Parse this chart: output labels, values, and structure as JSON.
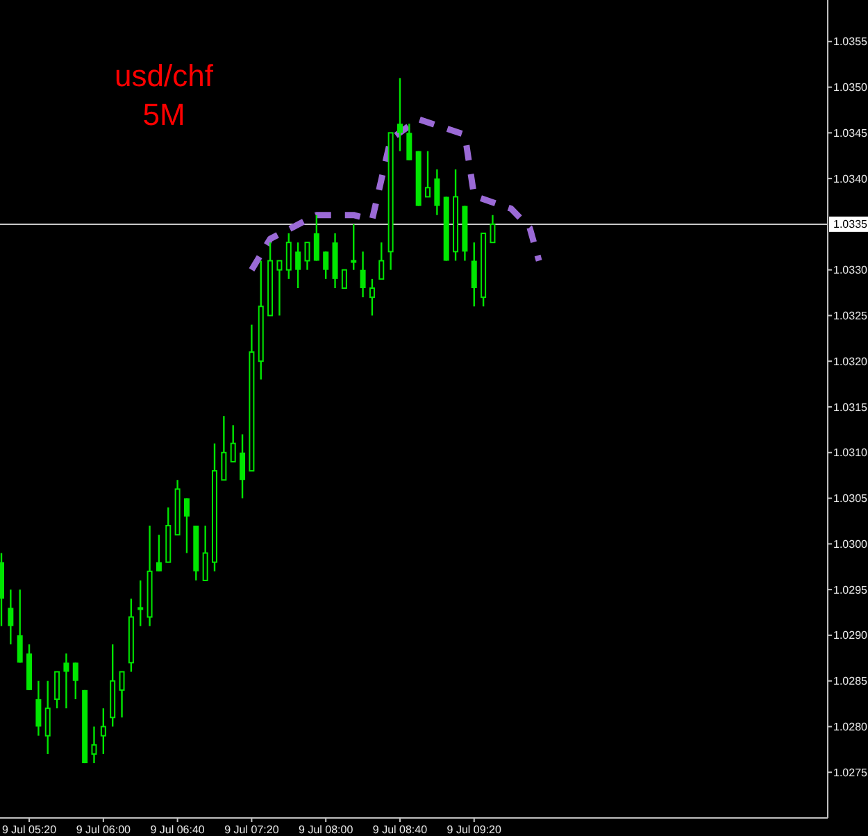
{
  "chart_data": {
    "type": "candlestick",
    "title": "usd/chf",
    "subtitle": "5M",
    "categories": [
      null,
      null,
      null,
      "9 Jul 05:20",
      null,
      null,
      null,
      null,
      null,
      null,
      null,
      "9 Jul 06:00",
      null,
      null,
      null,
      null,
      null,
      null,
      null,
      "9 Jul 06:40",
      null,
      null,
      null,
      null,
      null,
      null,
      null,
      "9 Jul 07:20",
      null,
      null,
      null,
      null,
      null,
      null,
      null,
      "9 Jul 08:00",
      null,
      null,
      null,
      null,
      null,
      null,
      null,
      "9 Jul 08:40",
      null,
      null,
      null,
      null,
      null,
      null,
      null,
      "9 Jul 09:20",
      null,
      null,
      null,
      null,
      null,
      null,
      null,
      null,
      null,
      null,
      null,
      null,
      null,
      null,
      null,
      null,
      null,
      null,
      null,
      null,
      null,
      null,
      null,
      null,
      null,
      null,
      null,
      null,
      null,
      null,
      null,
      null,
      null,
      null,
      null,
      null,
      null,
      null
    ],
    "ohlc": [
      [
        1.0298,
        1.0299,
        1.0291,
        1.0294
      ],
      [
        1.0293,
        1.0295,
        1.0289,
        1.0291
      ],
      [
        1.029,
        1.0295,
        1.0287,
        1.0287
      ],
      [
        1.0288,
        1.0289,
        1.0284,
        1.0284
      ],
      [
        1.0283,
        1.0285,
        1.0279,
        1.028
      ],
      [
        1.0279,
        1.0285,
        1.0277,
        1.0282
      ],
      [
        1.0283,
        1.0286,
        1.0282,
        1.0286
      ],
      [
        1.0287,
        1.0288,
        1.0282,
        1.0286
      ],
      [
        1.0287,
        1.0287,
        1.0283,
        1.0285
      ],
      [
        1.0284,
        1.0284,
        1.0276,
        1.0276
      ],
      [
        1.0277,
        1.028,
        1.0276,
        1.0278
      ],
      [
        1.0279,
        1.0282,
        1.0277,
        1.028
      ],
      [
        1.0281,
        1.0289,
        1.028,
        1.0285
      ],
      [
        1.0284,
        1.0286,
        1.0281,
        1.0286
      ],
      [
        1.0287,
        1.0294,
        1.0286,
        1.0292
      ],
      [
        1.0293,
        1.0296,
        1.0291,
        1.0293
      ],
      [
        1.0292,
        1.0302,
        1.0291,
        1.0297
      ],
      [
        1.0298,
        1.0301,
        1.0297,
        1.0297
      ],
      [
        1.0298,
        1.0304,
        1.0298,
        1.0302
      ],
      [
        1.0301,
        1.0307,
        1.0301,
        1.0306
      ],
      [
        1.0305,
        1.0305,
        1.0299,
        1.0303
      ],
      [
        1.0302,
        1.0302,
        1.0296,
        1.0297
      ],
      [
        1.0296,
        1.0302,
        1.0296,
        1.0299
      ],
      [
        1.0298,
        1.0311,
        1.0297,
        1.0308
      ],
      [
        1.0307,
        1.0314,
        1.0307,
        1.031
      ],
      [
        1.0309,
        1.0313,
        1.0309,
        1.0311
      ],
      [
        1.031,
        1.0312,
        1.0305,
        1.0307
      ],
      [
        1.0308,
        1.0324,
        1.0308,
        1.0321
      ],
      [
        1.032,
        1.0331,
        1.0318,
        1.0326
      ],
      [
        1.0325,
        1.0333,
        1.0325,
        1.0331
      ],
      [
        1.033,
        1.0331,
        1.0325,
        1.0331
      ],
      [
        1.033,
        1.0334,
        1.0329,
        1.0333
      ],
      [
        1.0332,
        1.0333,
        1.0328,
        1.033
      ],
      [
        1.0331,
        1.0333,
        1.033,
        1.0333
      ],
      [
        1.0334,
        1.0336,
        1.0331,
        1.0331
      ],
      [
        1.0332,
        1.0332,
        1.0329,
        1.033
      ],
      [
        1.0333,
        1.0334,
        1.0328,
        1.0329
      ],
      [
        1.0328,
        1.033,
        1.0328,
        1.033
      ],
      [
        1.0331,
        1.0335,
        1.033,
        1.0331
      ],
      [
        1.033,
        1.0332,
        1.0327,
        1.0328
      ],
      [
        1.0327,
        1.0329,
        1.0325,
        1.0328
      ],
      [
        1.0329,
        1.0333,
        1.0329,
        1.0331
      ],
      [
        1.0332,
        1.0345,
        1.033,
        1.0345
      ],
      [
        1.0346,
        1.0351,
        1.0343,
        1.0345
      ],
      [
        1.0345,
        1.0346,
        1.0342,
        1.0342
      ],
      [
        1.0343,
        1.0343,
        1.0337,
        1.0337
      ],
      [
        1.0338,
        1.0343,
        1.0338,
        1.0339
      ],
      [
        1.034,
        1.0341,
        1.0336,
        1.0337
      ],
      [
        1.0338,
        1.0338,
        1.0331,
        1.0331
      ],
      [
        1.0332,
        1.0341,
        1.0331,
        1.0338
      ],
      [
        1.0337,
        1.0337,
        1.0331,
        1.0332
      ],
      [
        1.0331,
        1.0333,
        1.0326,
        1.0328
      ],
      [
        1.0327,
        1.0334,
        1.0326,
        1.0334
      ],
      [
        1.0333,
        1.0336,
        1.0333,
        1.0335
      ],
      null,
      null,
      null,
      null,
      null,
      null,
      null,
      null,
      null,
      null,
      null,
      null,
      null,
      null,
      null,
      null,
      null,
      null,
      null,
      null,
      null,
      null,
      null,
      null,
      null,
      null,
      null,
      null,
      null,
      null,
      null,
      null,
      null,
      null,
      null,
      null
    ],
    "color": "#00e600",
    "series": [
      {
        "type": "line",
        "values": [
          null,
          null,
          null,
          null,
          null,
          null,
          null,
          null,
          null,
          null,
          null,
          null,
          null,
          null,
          null,
          null,
          null,
          null,
          null,
          null,
          null,
          null,
          null,
          null,
          null,
          null,
          null,
          1.033,
          null,
          1.03334,
          null,
          null,
          null,
          null,
          1.0336,
          null,
          null,
          null,
          1.0336,
          null,
          1.03355,
          null,
          1.03443,
          null,
          null,
          1.03465,
          null,
          null,
          null,
          null,
          1.03448,
          1.03381,
          null,
          null,
          null,
          1.03367,
          null,
          1.03346,
          1.0331,
          null,
          null,
          null,
          null,
          null,
          null,
          null,
          null,
          null,
          null,
          null,
          null,
          null,
          null,
          null,
          null,
          null,
          null,
          null,
          null,
          null,
          null,
          null,
          null,
          null,
          null,
          null,
          null,
          null,
          null,
          null
        ],
        "color": "#9b6ad6",
        "line_style": "dashed"
      }
    ],
    "ylim": [
      1.027,
      1.036
    ],
    "yticks": [
      1.0275,
      {
        "value": 1.028,
        "label": "1.0280"
      },
      1.0285,
      {
        "value": 1.029,
        "label": "1.0290"
      },
      1.0295,
      {
        "value": 1.03,
        "label": "1.0300"
      },
      1.0305,
      {
        "value": 1.031,
        "label": "1.0310"
      },
      1.0315,
      {
        "value": 1.032,
        "label": "1.0320"
      },
      1.0325,
      {
        "value": 1.033,
        "label": "1.0330"
      },
      {
        "value": 1.034,
        "label": "1.0340"
      },
      1.0345,
      {
        "value": 1.035,
        "label": "1.0350"
      },
      1.0355
    ],
    "ref_lines": [
      {
        "axis": "y",
        "value": 1.0335,
        "label": "1.0335",
        "color": "#c8c8c8"
      }
    ]
  }
}
